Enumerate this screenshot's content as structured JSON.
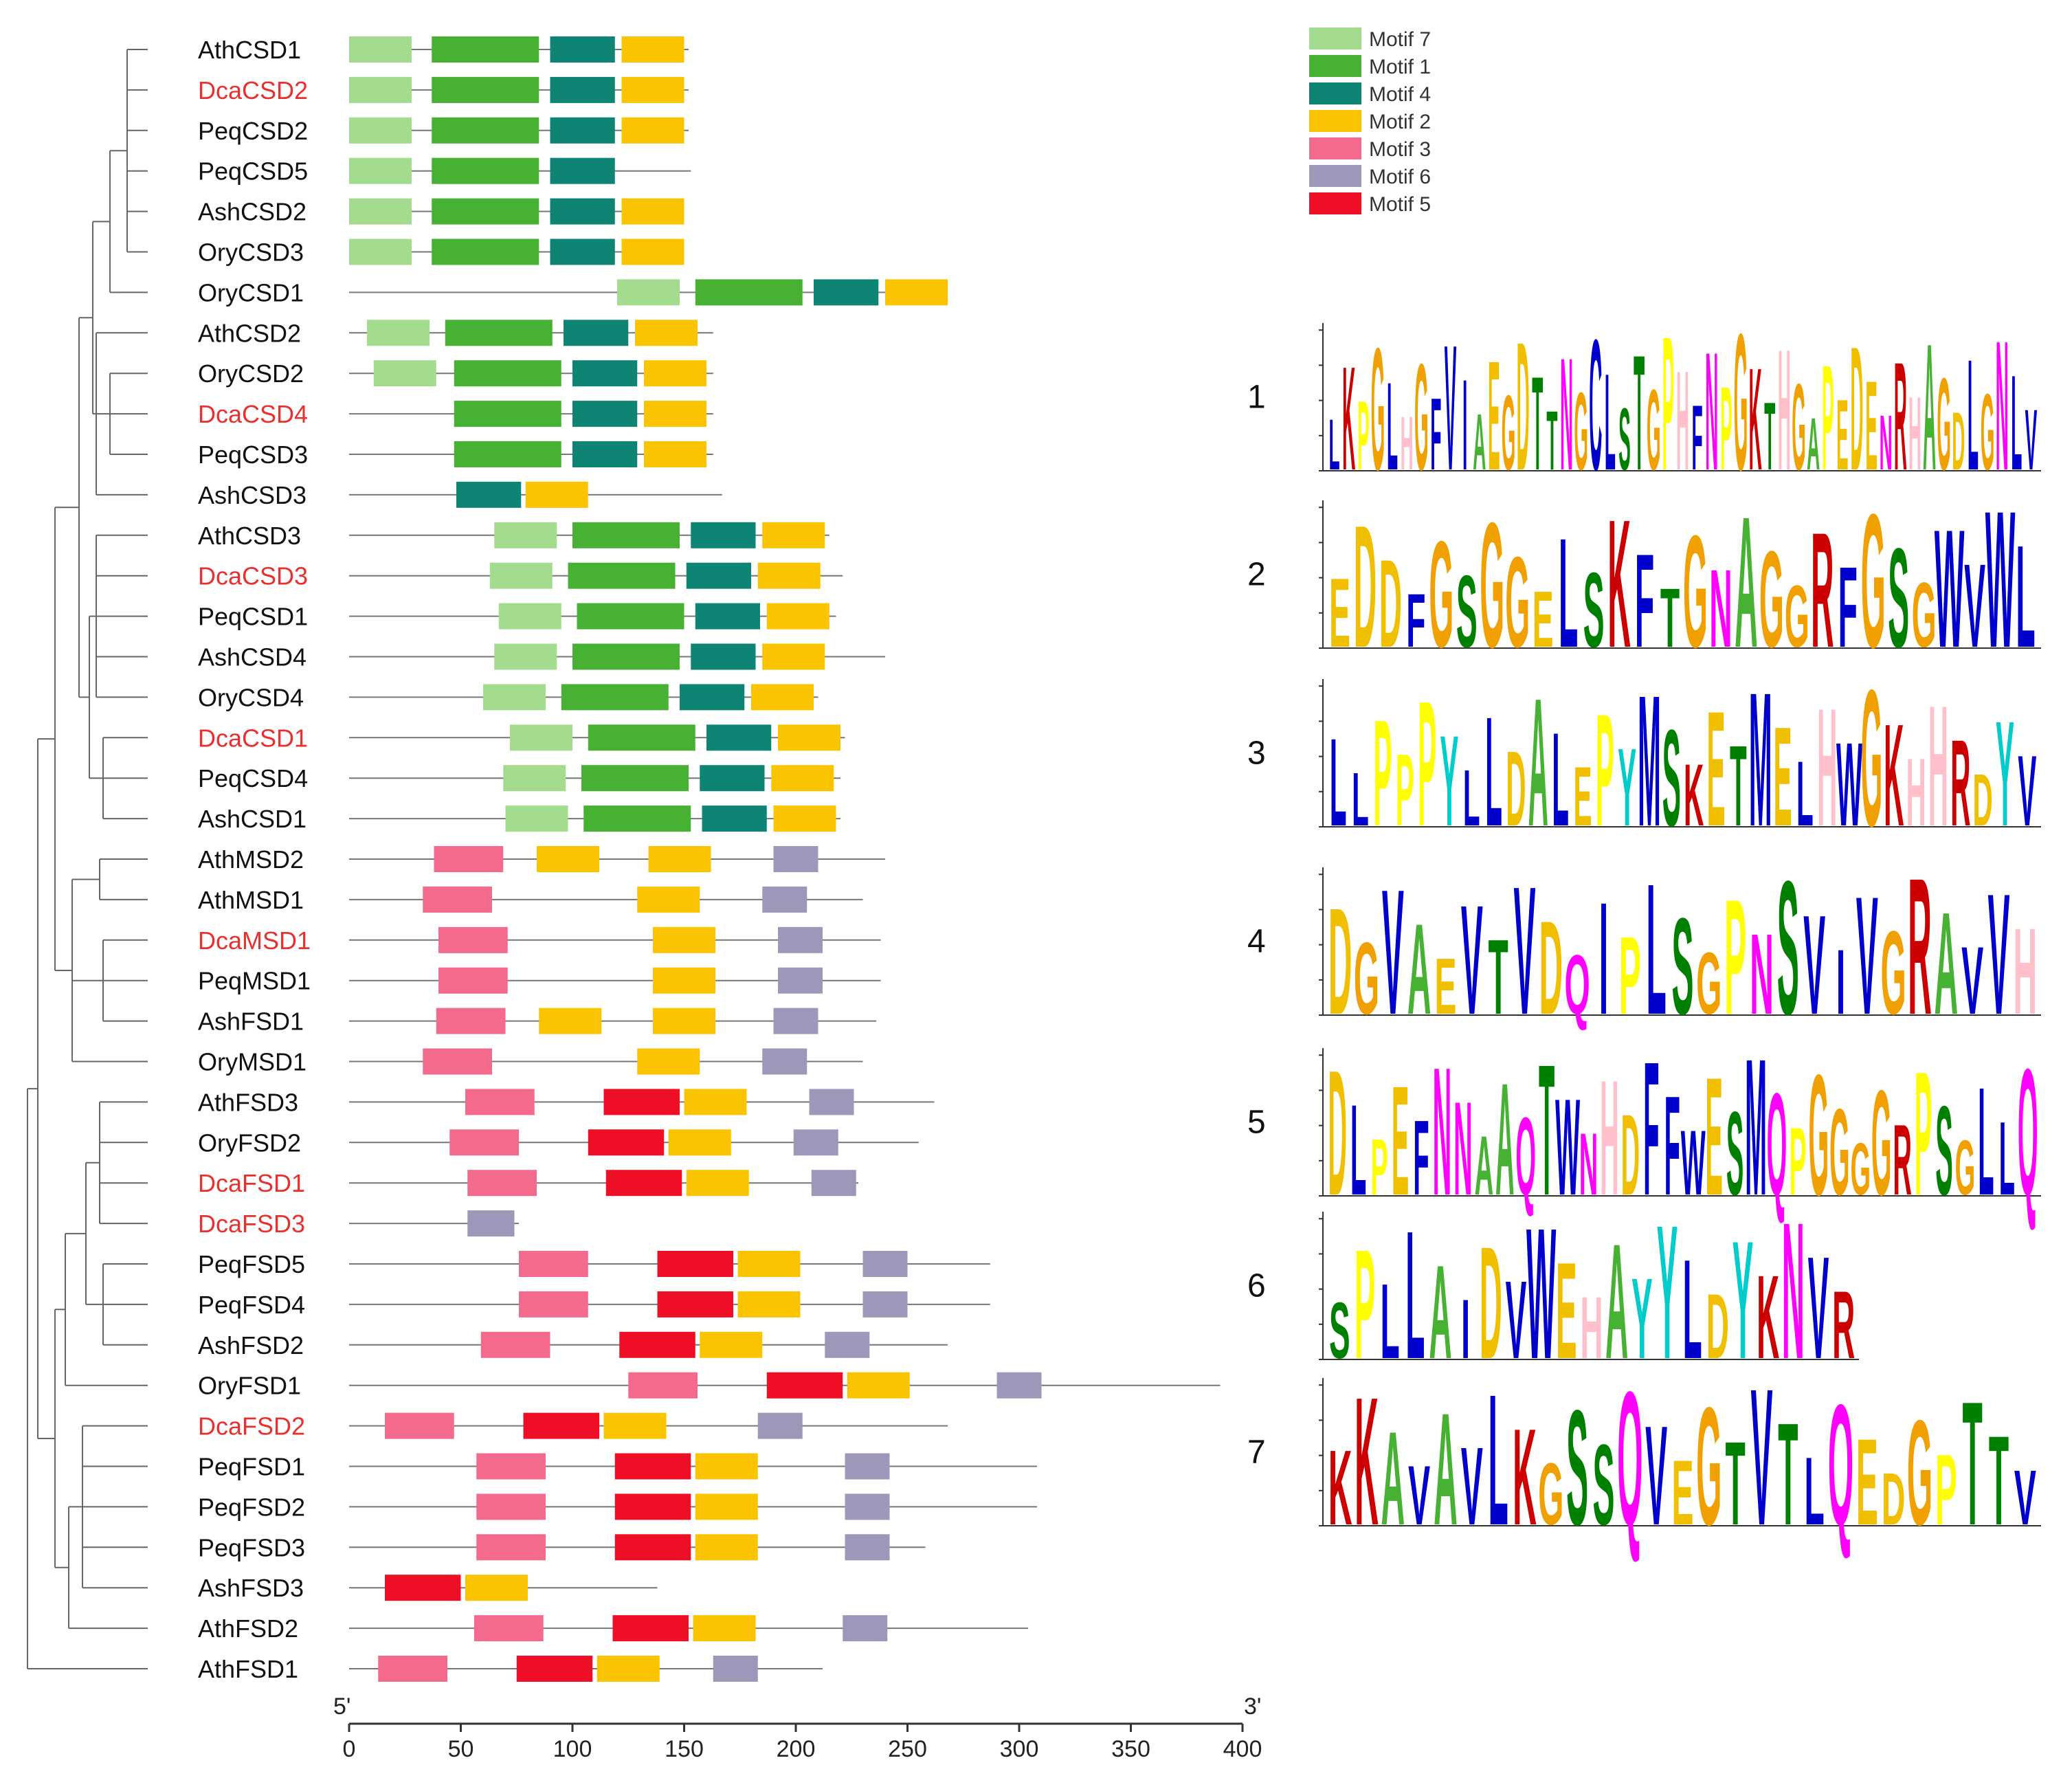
{
  "colors": {
    "motif1": "#46b133",
    "motif2": "#fbc400",
    "motif3": "#f36a8c",
    "motif4": "#0e8574",
    "motif5": "#ee0f26",
    "motif6": "#9e97ba",
    "motif7": "#a3dc8e",
    "highlight_label": "#e8312e",
    "default_label": "#111111",
    "tree": "#666666",
    "line": "#777777",
    "logo_A": "#46b133",
    "logo_C": "#0000cc",
    "logo_D": "#f0c000",
    "logo_E": "#f0c000",
    "logo_F": "#0000cc",
    "logo_G": "#f0a000",
    "logo_H": "#ffc0cb",
    "logo_I": "#0000cc",
    "logo_K": "#cc0000",
    "logo_L": "#0000cc",
    "logo_M": "#0000cc",
    "logo_N": "#ff00ff",
    "logo_P": "#ffff00",
    "logo_Q": "#ff00ff",
    "logo_R": "#cc0000",
    "logo_S": "#008000",
    "logo_T": "#008000",
    "logo_V": "#0000cc",
    "logo_W": "#0000cc",
    "logo_Y": "#00cccc"
  },
  "axis": {
    "start_label": "5'",
    "end_label": "3'",
    "ticks": [
      0,
      50,
      100,
      150,
      200,
      250,
      300,
      350,
      400
    ],
    "tick_labels": [
      "0",
      "50",
      "100",
      "150",
      "200",
      "250",
      "300",
      "350",
      "400"
    ],
    "max": 400
  },
  "legend": [
    {
      "motif": 7,
      "label": "Motif 7"
    },
    {
      "motif": 1,
      "label": "Motif 1"
    },
    {
      "motif": 4,
      "label": "Motif 4"
    },
    {
      "motif": 2,
      "label": "Motif 2"
    },
    {
      "motif": 3,
      "label": "Motif 3"
    },
    {
      "motif": 6,
      "label": "Motif 6"
    },
    {
      "motif": 5,
      "label": "Motif 5"
    }
  ],
  "genes": [
    {
      "name": "AthCSD1",
      "highlight": false,
      "length": 152,
      "motifs": [
        [
          0,
          28,
          7
        ],
        [
          37,
          85,
          1
        ],
        [
          90,
          119,
          4
        ],
        [
          122,
          150,
          2
        ]
      ]
    },
    {
      "name": "DcaCSD2",
      "highlight": true,
      "length": 152,
      "motifs": [
        [
          0,
          28,
          7
        ],
        [
          37,
          85,
          1
        ],
        [
          90,
          119,
          4
        ],
        [
          122,
          150,
          2
        ]
      ]
    },
    {
      "name": "PeqCSD2",
      "highlight": false,
      "length": 152,
      "motifs": [
        [
          0,
          28,
          7
        ],
        [
          37,
          85,
          1
        ],
        [
          90,
          119,
          4
        ],
        [
          122,
          150,
          2
        ]
      ]
    },
    {
      "name": "PeqCSD5",
      "highlight": false,
      "length": 153,
      "motifs": [
        [
          0,
          28,
          7
        ],
        [
          37,
          85,
          1
        ],
        [
          90,
          119,
          4
        ]
      ]
    },
    {
      "name": "AshCSD2",
      "highlight": false,
      "length": 150,
      "motifs": [
        [
          0,
          28,
          7
        ],
        [
          37,
          85,
          1
        ],
        [
          90,
          119,
          4
        ],
        [
          122,
          150,
          2
        ]
      ]
    },
    {
      "name": "OryCSD3",
      "highlight": false,
      "length": 150,
      "motifs": [
        [
          0,
          28,
          7
        ],
        [
          37,
          85,
          1
        ],
        [
          90,
          119,
          4
        ],
        [
          122,
          150,
          2
        ]
      ]
    },
    {
      "name": "OryCSD1",
      "highlight": false,
      "length": 268,
      "motifs": [
        [
          120,
          148,
          7
        ],
        [
          155,
          203,
          1
        ],
        [
          208,
          237,
          4
        ],
        [
          240,
          268,
          2
        ]
      ]
    },
    {
      "name": "AthCSD2",
      "highlight": false,
      "length": 163,
      "motifs": [
        [
          8,
          36,
          7
        ],
        [
          43,
          91,
          1
        ],
        [
          96,
          125,
          4
        ],
        [
          128,
          156,
          2
        ]
      ]
    },
    {
      "name": "OryCSD2",
      "highlight": false,
      "length": 163,
      "motifs": [
        [
          11,
          39,
          7
        ],
        [
          47,
          95,
          1
        ],
        [
          100,
          129,
          4
        ],
        [
          132,
          160,
          2
        ]
      ]
    },
    {
      "name": "DcaCSD4",
      "highlight": true,
      "length": 163,
      "motifs": [
        [
          47,
          95,
          1
        ],
        [
          100,
          129,
          4
        ],
        [
          132,
          160,
          2
        ]
      ]
    },
    {
      "name": "PeqCSD3",
      "highlight": false,
      "length": 163,
      "motifs": [
        [
          47,
          95,
          1
        ],
        [
          100,
          129,
          4
        ],
        [
          132,
          160,
          2
        ]
      ]
    },
    {
      "name": "AshCSD3",
      "highlight": false,
      "length": 167,
      "motifs": [
        [
          48,
          77,
          4
        ],
        [
          79,
          107,
          2
        ]
      ]
    },
    {
      "name": "AthCSD3",
      "highlight": false,
      "length": 215,
      "motifs": [
        [
          65,
          93,
          7
        ],
        [
          100,
          148,
          1
        ],
        [
          153,
          182,
          4
        ],
        [
          185,
          213,
          2
        ]
      ]
    },
    {
      "name": "DcaCSD3",
      "highlight": true,
      "length": 221,
      "motifs": [
        [
          63,
          91,
          7
        ],
        [
          98,
          146,
          1
        ],
        [
          151,
          180,
          4
        ],
        [
          183,
          211,
          2
        ]
      ]
    },
    {
      "name": "PeqCSD1",
      "highlight": false,
      "length": 218,
      "motifs": [
        [
          67,
          95,
          7
        ],
        [
          102,
          150,
          1
        ],
        [
          155,
          184,
          4
        ],
        [
          187,
          215,
          2
        ]
      ]
    },
    {
      "name": "AshCSD4",
      "highlight": false,
      "length": 240,
      "motifs": [
        [
          65,
          93,
          7
        ],
        [
          100,
          148,
          1
        ],
        [
          153,
          182,
          4
        ],
        [
          185,
          213,
          2
        ]
      ]
    },
    {
      "name": "OryCSD4",
      "highlight": false,
      "length": 210,
      "motifs": [
        [
          60,
          88,
          7
        ],
        [
          95,
          143,
          1
        ],
        [
          148,
          177,
          4
        ],
        [
          180,
          208,
          2
        ]
      ]
    },
    {
      "name": "DcaCSD1",
      "highlight": true,
      "length": 222,
      "motifs": [
        [
          72,
          100,
          7
        ],
        [
          107,
          155,
          1
        ],
        [
          160,
          189,
          4
        ],
        [
          192,
          220,
          2
        ]
      ]
    },
    {
      "name": "PeqCSD4",
      "highlight": false,
      "length": 220,
      "motifs": [
        [
          69,
          97,
          7
        ],
        [
          104,
          152,
          1
        ],
        [
          157,
          186,
          4
        ],
        [
          189,
          217,
          2
        ]
      ]
    },
    {
      "name": "AshCSD1",
      "highlight": false,
      "length": 220,
      "motifs": [
        [
          70,
          98,
          7
        ],
        [
          105,
          153,
          1
        ],
        [
          158,
          187,
          4
        ],
        [
          190,
          218,
          2
        ]
      ]
    },
    {
      "name": "AthMSD2",
      "highlight": false,
      "length": 240,
      "motifs": [
        [
          38,
          69,
          3
        ],
        [
          84,
          112,
          2
        ],
        [
          134,
          162,
          2
        ],
        [
          190,
          210,
          6
        ]
      ]
    },
    {
      "name": "AthMSD1",
      "highlight": false,
      "length": 230,
      "motifs": [
        [
          33,
          64,
          3
        ],
        [
          129,
          157,
          2
        ],
        [
          185,
          205,
          6
        ]
      ]
    },
    {
      "name": "DcaMSD1",
      "highlight": true,
      "length": 238,
      "motifs": [
        [
          40,
          71,
          3
        ],
        [
          136,
          164,
          2
        ],
        [
          192,
          212,
          6
        ]
      ]
    },
    {
      "name": "PeqMSD1",
      "highlight": false,
      "length": 238,
      "motifs": [
        [
          40,
          71,
          3
        ],
        [
          136,
          164,
          2
        ],
        [
          192,
          212,
          6
        ]
      ]
    },
    {
      "name": "AshFSD1",
      "highlight": false,
      "length": 236,
      "motifs": [
        [
          39,
          70,
          3
        ],
        [
          85,
          113,
          2
        ],
        [
          136,
          164,
          2
        ],
        [
          190,
          210,
          6
        ]
      ]
    },
    {
      "name": "OryMSD1",
      "highlight": false,
      "length": 230,
      "motifs": [
        [
          33,
          64,
          3
        ],
        [
          129,
          157,
          2
        ],
        [
          185,
          205,
          6
        ]
      ]
    },
    {
      "name": "AthFSD3",
      "highlight": false,
      "length": 262,
      "motifs": [
        [
          52,
          83,
          3
        ],
        [
          114,
          148,
          5
        ],
        [
          150,
          178,
          2
        ],
        [
          206,
          226,
          6
        ]
      ]
    },
    {
      "name": "OryFSD2",
      "highlight": false,
      "length": 255,
      "motifs": [
        [
          45,
          76,
          3
        ],
        [
          107,
          141,
          5
        ],
        [
          143,
          171,
          2
        ],
        [
          199,
          219,
          6
        ]
      ]
    },
    {
      "name": "DcaFSD1",
      "highlight": true,
      "length": 228,
      "motifs": [
        [
          53,
          84,
          3
        ],
        [
          115,
          149,
          5
        ],
        [
          151,
          179,
          2
        ],
        [
          207,
          227,
          6
        ]
      ]
    },
    {
      "name": "DcaFSD3",
      "highlight": true,
      "length": 76,
      "motifs": [
        [
          53,
          74,
          6
        ]
      ]
    },
    {
      "name": "PeqFSD5",
      "highlight": false,
      "length": 287,
      "motifs": [
        [
          76,
          107,
          3
        ],
        [
          138,
          172,
          5
        ],
        [
          174,
          202,
          2
        ],
        [
          230,
          250,
          6
        ]
      ]
    },
    {
      "name": "PeqFSD4",
      "highlight": false,
      "length": 287,
      "motifs": [
        [
          76,
          107,
          3
        ],
        [
          138,
          172,
          5
        ],
        [
          174,
          202,
          2
        ],
        [
          230,
          250,
          6
        ]
      ]
    },
    {
      "name": "AshFSD2",
      "highlight": false,
      "length": 268,
      "motifs": [
        [
          59,
          90,
          3
        ],
        [
          121,
          155,
          5
        ],
        [
          157,
          185,
          2
        ],
        [
          213,
          233,
          6
        ]
      ]
    },
    {
      "name": "OryFSD1",
      "highlight": false,
      "length": 390,
      "motifs": [
        [
          125,
          156,
          3
        ],
        [
          187,
          221,
          5
        ],
        [
          223,
          251,
          2
        ],
        [
          290,
          310,
          6
        ]
      ]
    },
    {
      "name": "DcaFSD2",
      "highlight": true,
      "length": 268,
      "motifs": [
        [
          16,
          47,
          3
        ],
        [
          78,
          112,
          5
        ],
        [
          114,
          142,
          2
        ],
        [
          183,
          203,
          6
        ]
      ]
    },
    {
      "name": "PeqFSD1",
      "highlight": false,
      "length": 308,
      "motifs": [
        [
          57,
          88,
          3
        ],
        [
          119,
          153,
          5
        ],
        [
          155,
          183,
          2
        ],
        [
          222,
          242,
          6
        ]
      ]
    },
    {
      "name": "PeqFSD2",
      "highlight": false,
      "length": 308,
      "motifs": [
        [
          57,
          88,
          3
        ],
        [
          119,
          153,
          5
        ],
        [
          155,
          183,
          2
        ],
        [
          222,
          242,
          6
        ]
      ]
    },
    {
      "name": "PeqFSD3",
      "highlight": false,
      "length": 258,
      "motifs": [
        [
          57,
          88,
          3
        ],
        [
          119,
          153,
          5
        ],
        [
          155,
          183,
          2
        ],
        [
          222,
          242,
          6
        ]
      ]
    },
    {
      "name": "AshFSD3",
      "highlight": false,
      "length": 138,
      "motifs": [
        [
          16,
          50,
          5
        ],
        [
          52,
          80,
          2
        ]
      ]
    },
    {
      "name": "AthFSD2",
      "highlight": false,
      "length": 304,
      "motifs": [
        [
          56,
          87,
          3
        ],
        [
          118,
          152,
          5
        ],
        [
          154,
          182,
          2
        ],
        [
          221,
          241,
          6
        ]
      ]
    },
    {
      "name": "AthFSD1",
      "highlight": false,
      "length": 212,
      "motifs": [
        [
          13,
          44,
          3
        ],
        [
          75,
          109,
          5
        ],
        [
          111,
          139,
          2
        ],
        [
          163,
          183,
          6
        ]
      ]
    }
  ],
  "tree": [
    [
      20,
      0,
      1,
      2
    ],
    [
      40,
      3,
      4
    ],
    [
      60,
      5,
      6
    ],
    [
      80,
      7
    ],
    [
      100,
      0,
      8
    ],
    [
      120,
      1,
      9
    ],
    [
      100,
      10
    ],
    [
      120,
      11
    ],
    [
      60,
      12,
      13
    ],
    [
      80,
      14,
      15
    ],
    [
      100,
      16
    ],
    [
      60,
      17
    ],
    [
      80,
      18,
      19
    ],
    [
      40,
      20
    ],
    [
      60,
      21,
      22
    ],
    [
      80,
      23,
      24
    ],
    [
      40,
      25
    ],
    [
      60,
      26,
      27
    ],
    [
      80,
      28,
      29
    ],
    [
      40,
      30
    ],
    [
      60,
      31,
      32
    ],
    [
      20,
      33
    ],
    [
      40,
      34
    ],
    [
      60,
      35,
      36
    ],
    [
      80,
      37
    ],
    [
      20,
      38
    ],
    [
      0,
      39,
      40
    ]
  ],
  "logos": [
    {
      "number": "1",
      "sequence": "LKPGLHGFVIAEGDTTNGCLSTGPHFNPGKTHGAPEDENRHAGDLGNLV"
    },
    {
      "number": "2",
      "sequence": "EDDFGSGGELSKFTGNAGGRFGSGWVWL"
    },
    {
      "number": "3",
      "sequence": "LLPPPYLLDALEPYMSKETMELHWGKHHRDYV"
    },
    {
      "number": "4",
      "sequence": "DGVAEVTVDQIPLSGPNSVIVGRAVVH"
    },
    {
      "number": "5",
      "sequence": "DLPEFNNAAQTWNHDFFWESMQPGGGGRPSGLLQ"
    },
    {
      "number": "6",
      "sequence": "SPLLAIDVWEHAYYLDYKNVR"
    },
    {
      "number": "7",
      "sequence": "KKAVAVLKGSSQVEGTVTLQEDGPTTV"
    }
  ]
}
